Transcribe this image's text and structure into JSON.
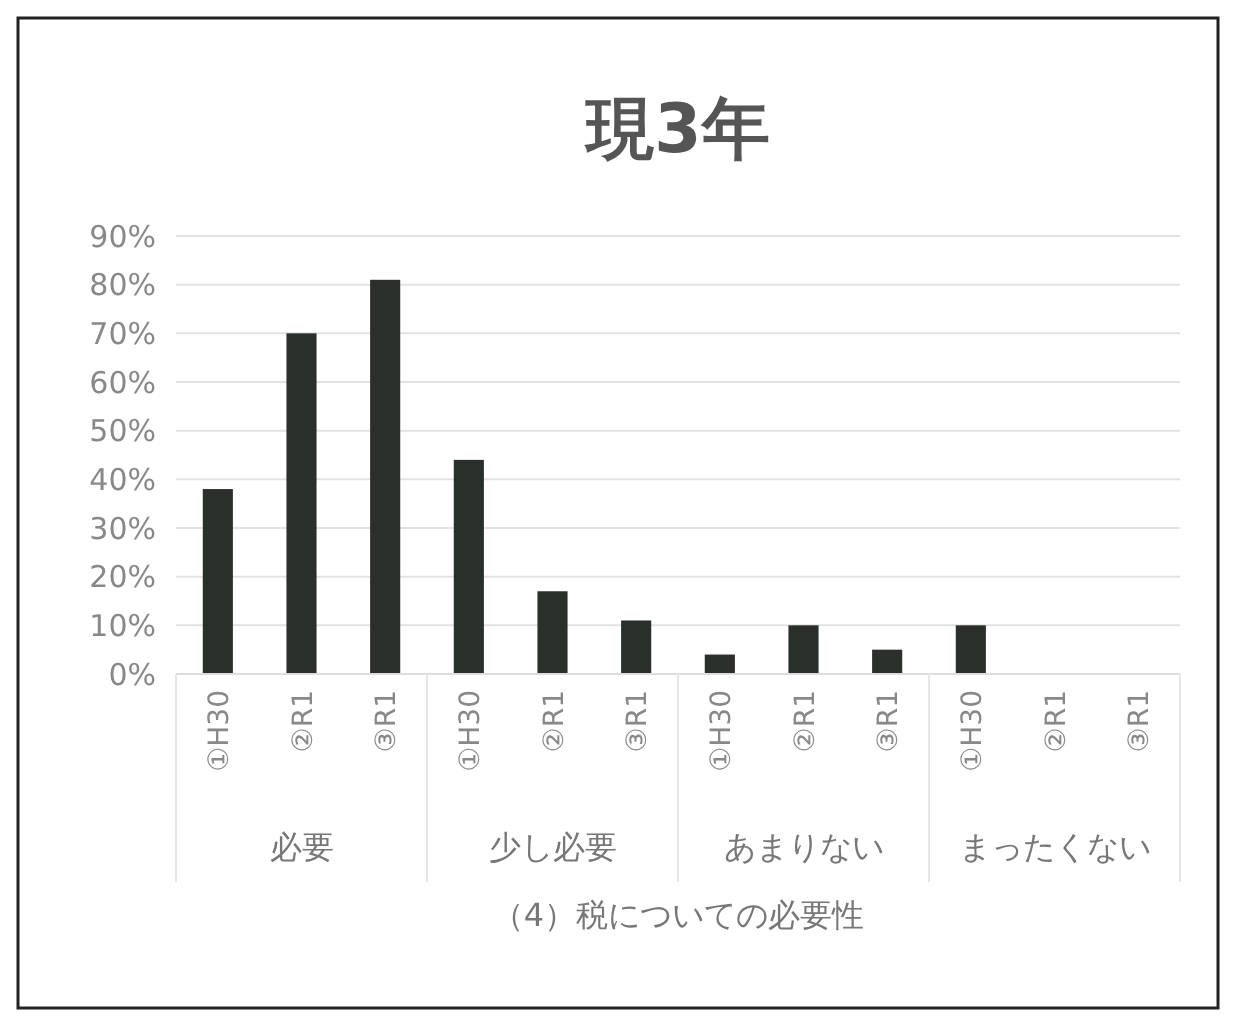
{
  "chart_data": {
    "type": "bar",
    "title": "現3年",
    "xlabel": "（4）税についての必要性",
    "categories": [
      "①H30",
      "②R1",
      "③R1",
      "①H30",
      "②R1",
      "③R1",
      "①H30",
      "②R1",
      "③R1",
      "①H30",
      "②R1",
      "③R1"
    ],
    "values": [
      38,
      70,
      81,
      44,
      17,
      11,
      4,
      10,
      5,
      10,
      0,
      0
    ],
    "color": "#2b2f2c",
    "ylim": [
      0,
      90
    ],
    "yticks": [
      {
        "value": 0,
        "label": "0%"
      },
      {
        "value": 10,
        "label": "10%"
      },
      {
        "value": 20,
        "label": "20%"
      },
      {
        "value": 30,
        "label": "30%"
      },
      {
        "value": 40,
        "label": "40%"
      },
      {
        "value": 50,
        "label": "50%"
      },
      {
        "value": 60,
        "label": "60%"
      },
      {
        "value": 70,
        "label": "70%"
      },
      {
        "value": 80,
        "label": "80%"
      },
      {
        "value": 90,
        "label": "90%"
      }
    ],
    "grid": "y",
    "annotations": [
      "必要",
      "少し必要",
      "あまりない",
      "まったくない"
    ]
  }
}
